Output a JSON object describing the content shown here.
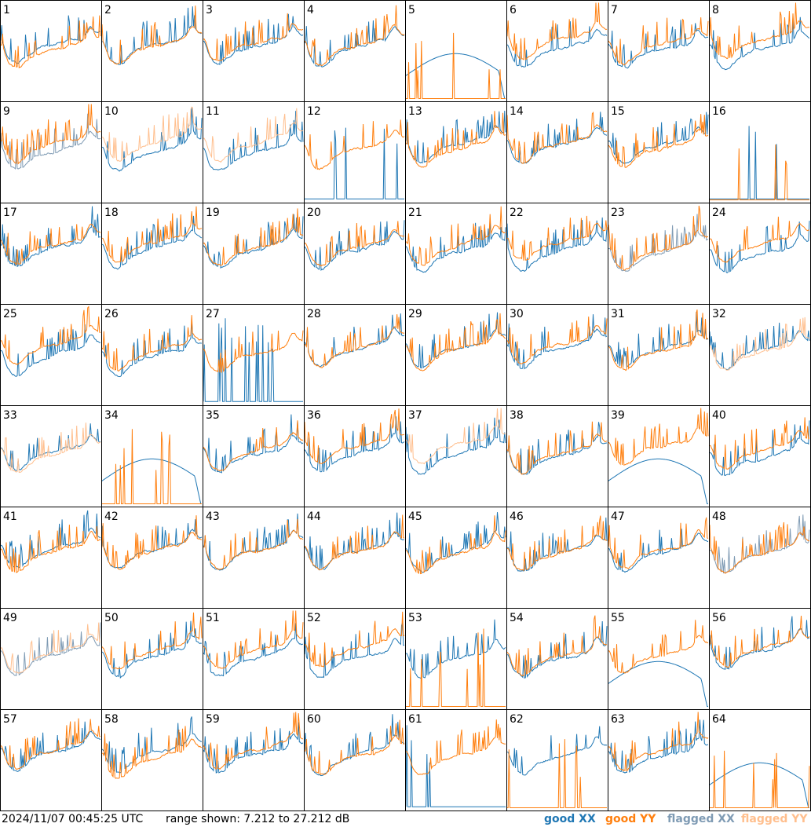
{
  "chart_data": {
    "type": "line",
    "layout": "small-multiples 8x8",
    "panel_labels": [
      "1",
      "2",
      "3",
      "4",
      "5",
      "6",
      "7",
      "8",
      "9",
      "10",
      "11",
      "12",
      "13",
      "14",
      "15",
      "16",
      "17",
      "18",
      "19",
      "20",
      "21",
      "22",
      "23",
      "24",
      "25",
      "26",
      "27",
      "28",
      "29",
      "30",
      "31",
      "32",
      "33",
      "34",
      "35",
      "36",
      "37",
      "38",
      "39",
      "40",
      "41",
      "42",
      "43",
      "44",
      "45",
      "46",
      "47",
      "48",
      "49",
      "50",
      "51",
      "52",
      "53",
      "54",
      "55",
      "56",
      "57",
      "58",
      "59",
      "60",
      "61",
      "62",
      "63",
      "64"
    ],
    "ylim_db": [
      7.212,
      27.212
    ],
    "series_styles": {
      "good_xx": {
        "label": "good XX",
        "color": "#1f77b4"
      },
      "good_yy": {
        "label": "good YY",
        "color": "#ff7f0e"
      },
      "flagged_xx": {
        "label": "flagged XX",
        "color": "#7f9bb4"
      },
      "flagged_yy": {
        "label": "flagged YY",
        "color": "#ffbf8e"
      }
    },
    "panel_status": {
      "flagged_xx": [
        "9",
        "23",
        "48",
        "49"
      ],
      "flagged_yy": [
        "10",
        "11",
        "32",
        "33",
        "37",
        "49"
      ],
      "anomalous_xx": [
        "5",
        "12",
        "16",
        "27",
        "34",
        "39",
        "55",
        "61",
        "64"
      ],
      "anomalous_yy": [
        "5",
        "16",
        "34",
        "53",
        "62",
        "64"
      ]
    }
  },
  "footer": {
    "timestamp": "2024/11/07 00:45:25 UTC",
    "range_text": "range shown: 7.212 to 27.212 dB",
    "legend": [
      "good XX",
      "good YY",
      "flagged XX",
      "flagged YY"
    ]
  },
  "colors": {
    "good_xx": "#1f77b4",
    "good_yy": "#ff7f0e",
    "flagged_xx": "#7f9bb4",
    "flagged_yy": "#ffbf8e"
  }
}
